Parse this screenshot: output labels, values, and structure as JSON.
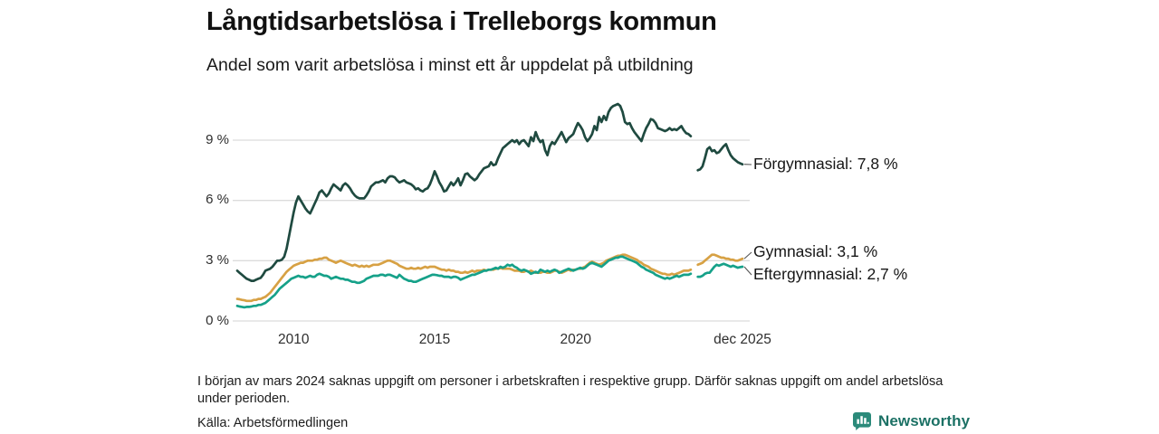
{
  "title": "Långtidsarbetslösa i Trelleborgs kommun",
  "subtitle": "Andel som varit arbetslösa i minst ett år uppdelat på utbildning",
  "footnote": "I början av mars 2024 saknas uppgift om personer i arbetskraften i respektive grupp. Därför saknas uppgift om andel arbetslösa under perioden.",
  "source": "Källa: Arbetsförmedlingen",
  "logo": {
    "text": "Newsworthy",
    "icon": "newsworthy-speech-bubble-bars-icon",
    "icon_color": "#2b8a7a",
    "text_color": "#1c7165"
  },
  "chart_data": {
    "type": "line",
    "x_start": "2008-01",
    "x_interval": "monthly",
    "x_end": "2025-12",
    "ylim": [
      0,
      10.9
    ],
    "grid": true,
    "gridline_color": "#dcdcdc",
    "yticks": [
      {
        "value": 0,
        "label": "0 %"
      },
      {
        "value": 3,
        "label": "3 %"
      },
      {
        "value": 6,
        "label": "6 %"
      },
      {
        "value": 9,
        "label": "9 %"
      }
    ],
    "xticks": [
      {
        "month_index": 24,
        "label": "2010"
      },
      {
        "month_index": 84,
        "label": "2015"
      },
      {
        "month_index": 144,
        "label": "2020"
      },
      {
        "month_index": 215,
        "label": "dec 2025"
      }
    ],
    "note": "Gap in all series during spring 2024 (data missing from early March 2024)",
    "series": [
      {
        "name": "Förgymnasial",
        "label": "Förgymnasial: 7,8 %",
        "last_value": 7.8,
        "color": "#1f4a40",
        "values": [
          2.5,
          2.4,
          2.3,
          2.2,
          2.1,
          2.05,
          2.0,
          2.0,
          2.05,
          2.1,
          2.15,
          2.3,
          2.5,
          2.55,
          2.6,
          2.7,
          2.85,
          3.0,
          3.0,
          3.05,
          3.2,
          3.6,
          4.2,
          4.8,
          5.4,
          5.9,
          6.2,
          6.0,
          5.8,
          5.6,
          5.45,
          5.35,
          5.6,
          5.85,
          6.1,
          6.4,
          6.5,
          6.35,
          6.2,
          6.35,
          6.6,
          6.8,
          6.7,
          6.6,
          6.5,
          6.75,
          6.85,
          6.75,
          6.6,
          6.4,
          6.25,
          6.15,
          6.1,
          6.1,
          6.1,
          6.25,
          6.45,
          6.7,
          6.8,
          6.9,
          6.9,
          6.95,
          7.0,
          6.9,
          7.1,
          7.2,
          7.2,
          7.15,
          7.0,
          6.9,
          6.95,
          7.0,
          6.9,
          6.85,
          6.8,
          6.7,
          6.55,
          6.6,
          6.5,
          6.45,
          6.55,
          6.6,
          6.8,
          7.1,
          7.45,
          7.2,
          6.9,
          6.7,
          6.45,
          6.5,
          6.7,
          6.9,
          6.75,
          6.9,
          7.1,
          6.75,
          7.0,
          7.3,
          7.35,
          7.2,
          7.1,
          7.0,
          7.1,
          7.3,
          7.45,
          7.6,
          7.65,
          7.7,
          7.9,
          7.75,
          7.8,
          8.1,
          8.35,
          8.6,
          8.7,
          8.8,
          8.9,
          9.0,
          8.9,
          9.0,
          8.8,
          8.95,
          9.0,
          8.85,
          8.7,
          9.15,
          8.95,
          9.4,
          9.1,
          8.9,
          9.0,
          8.5,
          8.25,
          8.7,
          8.9,
          8.8,
          9.0,
          9.2,
          9.4,
          9.15,
          8.9,
          9.1,
          9.2,
          9.3,
          9.6,
          9.85,
          9.7,
          9.5,
          9.15,
          8.95,
          9.1,
          9.3,
          9.7,
          9.5,
          10.15,
          9.9,
          10.2,
          10.0,
          10.4,
          10.6,
          10.7,
          10.75,
          10.8,
          10.7,
          10.4,
          9.9,
          9.8,
          9.85,
          9.6,
          9.4,
          9.25,
          9.1,
          8.95,
          9.3,
          9.6,
          9.8,
          10.05,
          10.0,
          9.85,
          9.6,
          9.55,
          9.5,
          9.45,
          9.5,
          9.6,
          9.5,
          9.55,
          9.5,
          9.6,
          9.7,
          9.5,
          9.35,
          9.3,
          9.2,
          null,
          null,
          7.5,
          7.55,
          7.7,
          8.1,
          8.55,
          8.65,
          8.45,
          8.5,
          8.35,
          8.4,
          8.55,
          8.7,
          8.8,
          8.5,
          8.25,
          8.1,
          8.0,
          7.9,
          7.85,
          7.8
        ]
      },
      {
        "name": "Gymnasial",
        "label": "Gymnasial: 3,1 %",
        "last_value": 3.1,
        "color": "#d7a144",
        "values": [
          1.1,
          1.08,
          1.05,
          1.03,
          1.0,
          1.0,
          1.0,
          1.05,
          1.05,
          1.1,
          1.1,
          1.15,
          1.2,
          1.3,
          1.4,
          1.55,
          1.7,
          1.85,
          2.0,
          2.15,
          2.3,
          2.45,
          2.55,
          2.65,
          2.75,
          2.8,
          2.85,
          2.9,
          2.9,
          2.95,
          3.0,
          3.0,
          3.0,
          3.05,
          3.05,
          3.1,
          3.1,
          3.15,
          3.15,
          3.05,
          3.0,
          2.95,
          2.9,
          2.95,
          3.0,
          2.95,
          2.9,
          2.85,
          2.8,
          2.75,
          2.8,
          2.75,
          2.7,
          2.75,
          2.7,
          2.75,
          2.7,
          2.75,
          2.8,
          2.8,
          2.8,
          2.85,
          2.9,
          2.95,
          3.0,
          3.0,
          2.95,
          2.9,
          2.85,
          2.75,
          2.7,
          2.65,
          2.6,
          2.6,
          2.65,
          2.6,
          2.6,
          2.65,
          2.6,
          2.65,
          2.7,
          2.65,
          2.7,
          2.7,
          2.7,
          2.65,
          2.6,
          2.55,
          2.55,
          2.5,
          2.55,
          2.5,
          2.5,
          2.45,
          2.45,
          2.4,
          2.4,
          2.45,
          2.4,
          2.45,
          2.5,
          2.45,
          2.5,
          2.5,
          2.5,
          2.55,
          2.5,
          2.55,
          2.55,
          2.55,
          2.6,
          2.6,
          2.65,
          2.6,
          2.6,
          2.6,
          2.6,
          2.55,
          2.5,
          2.5,
          2.5,
          2.45,
          2.45,
          2.5,
          2.45,
          2.5,
          2.45,
          2.4,
          2.4,
          2.4,
          2.45,
          2.45,
          2.4,
          2.4,
          2.45,
          2.5,
          2.5,
          2.45,
          2.4,
          2.45,
          2.5,
          2.55,
          2.5,
          2.55,
          2.55,
          2.6,
          2.6,
          2.65,
          2.7,
          2.8,
          2.9,
          2.95,
          2.9,
          2.85,
          2.8,
          2.85,
          2.9,
          3.0,
          3.05,
          3.1,
          3.15,
          3.2,
          3.25,
          3.25,
          3.3,
          3.3,
          3.25,
          3.2,
          3.15,
          3.1,
          3.05,
          2.95,
          2.9,
          2.8,
          2.75,
          2.7,
          2.6,
          2.55,
          2.5,
          2.45,
          2.4,
          2.35,
          2.35,
          2.3,
          2.3,
          2.35,
          2.3,
          2.35,
          2.4,
          2.45,
          2.5,
          2.5,
          2.5,
          2.55,
          null,
          null,
          2.8,
          2.85,
          2.9,
          3.0,
          3.1,
          3.2,
          3.3,
          3.3,
          3.25,
          3.2,
          3.15,
          3.15,
          3.1,
          3.1,
          3.05,
          3.05,
          3.0,
          3.0,
          3.05,
          3.1
        ]
      },
      {
        "name": "Eftergymnasial",
        "label": "Eftergymnasial: 2,7 %",
        "last_value": 2.7,
        "color": "#16a189",
        "values": [
          0.75,
          0.72,
          0.7,
          0.68,
          0.7,
          0.7,
          0.72,
          0.75,
          0.75,
          0.8,
          0.8,
          0.85,
          0.9,
          1.0,
          1.1,
          1.2,
          1.3,
          1.45,
          1.6,
          1.7,
          1.8,
          1.9,
          2.0,
          2.1,
          2.15,
          2.2,
          2.25,
          2.2,
          2.2,
          2.15,
          2.2,
          2.25,
          2.2,
          2.2,
          2.3,
          2.35,
          2.3,
          2.25,
          2.25,
          2.2,
          2.1,
          2.15,
          2.2,
          2.15,
          2.1,
          2.1,
          2.05,
          2.05,
          2.0,
          1.95,
          1.95,
          1.9,
          1.9,
          1.95,
          2.0,
          2.1,
          2.15,
          2.2,
          2.25,
          2.25,
          2.25,
          2.3,
          2.3,
          2.25,
          2.3,
          2.3,
          2.25,
          2.2,
          2.15,
          2.3,
          2.2,
          2.1,
          2.05,
          2.0,
          2.0,
          1.95,
          1.95,
          2.0,
          2.05,
          2.1,
          2.15,
          2.2,
          2.25,
          2.3,
          2.3,
          2.28,
          2.25,
          2.25,
          2.2,
          2.2,
          2.2,
          2.15,
          2.2,
          2.2,
          2.15,
          2.05,
          2.1,
          2.15,
          2.2,
          2.25,
          2.3,
          2.3,
          2.35,
          2.4,
          2.45,
          2.5,
          2.5,
          2.55,
          2.55,
          2.6,
          2.65,
          2.6,
          2.7,
          2.65,
          2.7,
          2.8,
          2.75,
          2.8,
          2.7,
          2.65,
          2.55,
          2.5,
          2.55,
          2.5,
          2.45,
          2.35,
          2.4,
          2.45,
          2.4,
          2.55,
          2.5,
          2.45,
          2.5,
          2.45,
          2.5,
          2.55,
          2.5,
          2.4,
          2.45,
          2.5,
          2.55,
          2.6,
          2.55,
          2.5,
          2.55,
          2.6,
          2.65,
          2.6,
          2.65,
          2.75,
          2.85,
          2.9,
          2.85,
          2.8,
          2.75,
          2.7,
          2.8,
          2.9,
          3.0,
          3.05,
          3.1,
          3.15,
          3.15,
          3.2,
          3.2,
          3.15,
          3.1,
          3.05,
          3.0,
          2.95,
          2.9,
          2.8,
          2.7,
          2.65,
          2.55,
          2.5,
          2.45,
          2.4,
          2.3,
          2.25,
          2.2,
          2.15,
          2.1,
          2.15,
          2.1,
          2.15,
          2.2,
          2.25,
          2.2,
          2.25,
          2.3,
          2.3,
          2.3,
          2.35,
          null,
          null,
          2.2,
          2.2,
          2.25,
          2.35,
          2.4,
          2.4,
          2.55,
          2.7,
          2.8,
          2.75,
          2.8,
          2.85,
          2.8,
          2.75,
          2.7,
          2.75,
          2.7,
          2.65,
          2.68,
          2.7
        ]
      }
    ]
  }
}
